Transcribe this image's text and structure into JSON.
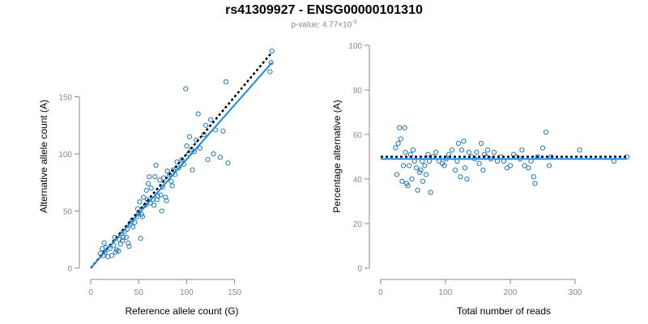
{
  "figure": {
    "title": "rs41309927 - ENSG00000101310",
    "pvalue_prefix": "p-value: 4.77×10",
    "pvalue_exponent": "-3"
  },
  "colors": {
    "points": "#1f77b4",
    "fit_line": "#1e88e5",
    "reference_line": "#000000",
    "axis": "#888888",
    "subtitle": "#888888"
  },
  "chart_data": [
    {
      "type": "scatter",
      "title": "",
      "xlabel": "Reference allele count (G)",
      "ylabel": "Alternative allele count (A)",
      "xlim": [
        0,
        190
      ],
      "ylim": [
        0,
        195
      ],
      "xticks": [
        0,
        50,
        100,
        150
      ],
      "yticks": [
        0,
        50,
        100,
        150
      ],
      "grid": false,
      "points": [
        [
          10,
          13
        ],
        [
          12,
          17
        ],
        [
          13,
          11
        ],
        [
          14,
          22
        ],
        [
          15,
          14
        ],
        [
          16,
          18
        ],
        [
          18,
          10
        ],
        [
          20,
          17
        ],
        [
          22,
          11
        ],
        [
          24,
          20
        ],
        [
          25,
          27
        ],
        [
          26,
          14
        ],
        [
          27,
          16
        ],
        [
          29,
          15
        ],
        [
          30,
          25
        ],
        [
          31,
          21
        ],
        [
          32,
          30
        ],
        [
          33,
          24
        ],
        [
          34,
          27
        ],
        [
          35,
          32
        ],
        [
          37,
          27
        ],
        [
          38,
          34
        ],
        [
          39,
          22
        ],
        [
          40,
          19
        ],
        [
          41,
          38
        ],
        [
          43,
          42
        ],
        [
          44,
          36
        ],
        [
          46,
          40
        ],
        [
          48,
          45
        ],
        [
          49,
          52
        ],
        [
          50,
          48
        ],
        [
          51,
          58
        ],
        [
          52,
          26
        ],
        [
          53,
          47
        ],
        [
          54,
          45
        ],
        [
          55,
          62
        ],
        [
          57,
          55
        ],
        [
          58,
          68
        ],
        [
          59,
          60
        ],
        [
          60,
          74
        ],
        [
          61,
          80
        ],
        [
          62,
          57
        ],
        [
          63,
          70
        ],
        [
          65,
          60
        ],
        [
          66,
          55
        ],
        [
          67,
          80
        ],
        [
          68,
          90
        ],
        [
          69,
          60
        ],
        [
          70,
          63
        ],
        [
          72,
          77
        ],
        [
          73,
          64
        ],
        [
          74,
          50
        ],
        [
          75,
          71
        ],
        [
          76,
          79
        ],
        [
          78,
          62
        ],
        [
          79,
          59
        ],
        [
          80,
          85
        ],
        [
          82,
          82
        ],
        [
          84,
          76
        ],
        [
          85,
          72
        ],
        [
          86,
          86
        ],
        [
          88,
          82
        ],
        [
          90,
          93
        ],
        [
          92,
          88
        ],
        [
          95,
          95
        ],
        [
          97,
          91
        ],
        [
          99,
          157
        ],
        [
          100,
          107
        ],
        [
          102,
          100
        ],
        [
          103,
          115
        ],
        [
          105,
          104
        ],
        [
          106,
          86
        ],
        [
          108,
          102
        ],
        [
          110,
          112
        ],
        [
          112,
          135
        ],
        [
          114,
          105
        ],
        [
          118,
          117
        ],
        [
          120,
          125
        ],
        [
          122,
          95
        ],
        [
          125,
          130
        ],
        [
          128,
          100
        ],
        [
          130,
          121
        ],
        [
          135,
          97
        ],
        [
          138,
          120
        ],
        [
          141,
          163
        ],
        [
          143,
          92
        ],
        [
          187,
          172
        ],
        [
          188,
          180
        ],
        [
          189,
          190
        ]
      ],
      "fit_line": [
        [
          0,
          0
        ],
        [
          189,
          180
        ]
      ],
      "reference_line": [
        [
          0,
          0
        ],
        [
          189,
          189
        ]
      ]
    },
    {
      "type": "scatter",
      "title": "",
      "xlabel": "Total number of reads",
      "ylabel": "Percentage alternative (A)",
      "xlim": [
        0,
        380
      ],
      "ylim": [
        0,
        100
      ],
      "xticks": [
        0,
        100,
        200,
        300
      ],
      "yticks": [
        0,
        20,
        40,
        60,
        80,
        100
      ],
      "grid": false,
      "points": [
        [
          23,
          54
        ],
        [
          25,
          42
        ],
        [
          27,
          56
        ],
        [
          29,
          63
        ],
        [
          31,
          58
        ],
        [
          33,
          39
        ],
        [
          35,
          46
        ],
        [
          37,
          63
        ],
        [
          38,
          52
        ],
        [
          40,
          38
        ],
        [
          42,
          37
        ],
        [
          44,
          46
        ],
        [
          46,
          51
        ],
        [
          48,
          40
        ],
        [
          50,
          53
        ],
        [
          52,
          48
        ],
        [
          55,
          45
        ],
        [
          57,
          35
        ],
        [
          60,
          43
        ],
        [
          62,
          44
        ],
        [
          64,
          48
        ],
        [
          65,
          39
        ],
        [
          68,
          46
        ],
        [
          70,
          42
        ],
        [
          73,
          51
        ],
        [
          75,
          48
        ],
        [
          77,
          34
        ],
        [
          80,
          50
        ],
        [
          85,
          52
        ],
        [
          90,
          48
        ],
        [
          95,
          47
        ],
        [
          98,
          46
        ],
        [
          101,
          49
        ],
        [
          105,
          51
        ],
        [
          110,
          53
        ],
        [
          115,
          44
        ],
        [
          118,
          48
        ],
        [
          120,
          56
        ],
        [
          123,
          41
        ],
        [
          125,
          53
        ],
        [
          128,
          57
        ],
        [
          130,
          45
        ],
        [
          133,
          40
        ],
        [
          136,
          52
        ],
        [
          140,
          50
        ],
        [
          145,
          49
        ],
        [
          148,
          52
        ],
        [
          152,
          47
        ],
        [
          155,
          56
        ],
        [
          158,
          44
        ],
        [
          160,
          51
        ],
        [
          163,
          50
        ],
        [
          165,
          53
        ],
        [
          170,
          49
        ],
        [
          175,
          52
        ],
        [
          180,
          48
        ],
        [
          185,
          50
        ],
        [
          190,
          48
        ],
        [
          195,
          45
        ],
        [
          200,
          46
        ],
        [
          205,
          51
        ],
        [
          210,
          50
        ],
        [
          215,
          49
        ],
        [
          218,
          53
        ],
        [
          222,
          46
        ],
        [
          228,
          45
        ],
        [
          232,
          48
        ],
        [
          236,
          41
        ],
        [
          238,
          38
        ],
        [
          242,
          50
        ],
        [
          250,
          54
        ],
        [
          255,
          61
        ],
        [
          260,
          46
        ],
        [
          263,
          50
        ],
        [
          307,
          53
        ],
        [
          360,
          48
        ],
        [
          380,
          50
        ]
      ],
      "fit_line": [
        [
          0,
          49
        ],
        [
          380,
          49
        ]
      ],
      "reference_line": [
        [
          0,
          50
        ],
        [
          380,
          50
        ]
      ]
    }
  ]
}
